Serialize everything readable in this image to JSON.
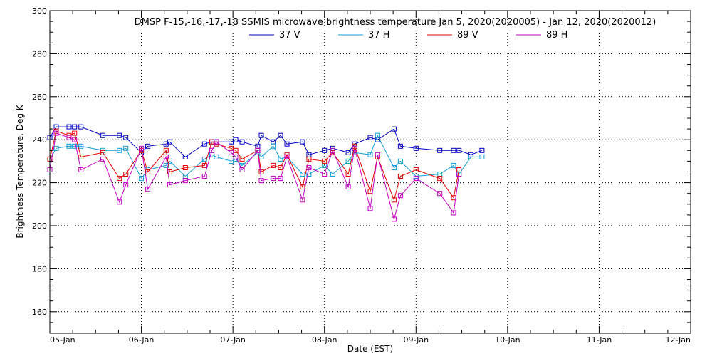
{
  "chart_data": {
    "type": "line",
    "title": "DMSP F-15,-16,-17,-18 SSMIS microwave brightness temperature Jan  5, 2020(2020005) - Jan 12, 2020(2020012)",
    "xlabel": "Date (EST)",
    "ylabel": "Brightness Temperature, Deg K",
    "xlim": [
      "05-Jan",
      "12-Jan"
    ],
    "ylim": [
      150,
      300
    ],
    "x_tick_labels": [
      "05-Jan",
      "06-Jan",
      "07-Jan",
      "08-Jan",
      "09-Jan",
      "10-Jan",
      "11-Jan",
      "12-Jan"
    ],
    "y_tick_labels": [
      160,
      180,
      200,
      220,
      240,
      260,
      280,
      300
    ],
    "grid": true,
    "legend_position": "top-center",
    "x": [
      0.0,
      0.07,
      0.21,
      0.27,
      0.34,
      0.58,
      0.76,
      0.83,
      1.0,
      1.07,
      1.27,
      1.31,
      1.48,
      1.69,
      1.77,
      1.82,
      1.98,
      2.03,
      2.1,
      2.27,
      2.31,
      2.44,
      2.52,
      2.59,
      2.76,
      2.83,
      3.0,
      3.09,
      3.26,
      3.33,
      3.5,
      3.58,
      3.76,
      3.83,
      4.0,
      4.26,
      4.41,
      4.47,
      4.6,
      4.72,
      4.95,
      4.99
    ],
    "series": [
      {
        "name": "37 V",
        "color": "#0000c0",
        "values": [
          241,
          246,
          246,
          246,
          246,
          242,
          242,
          241,
          234,
          237,
          238,
          239,
          232,
          238,
          239,
          239,
          239,
          240,
          239,
          237,
          242,
          239,
          242,
          238,
          239,
          233,
          235,
          236,
          234,
          238,
          241,
          240,
          245,
          237,
          236,
          235,
          235,
          235,
          233,
          235,
          null,
          null
        ]
      },
      {
        "name": "37 H",
        "color": "#109cd6",
        "values": [
          231,
          236,
          237,
          237,
          237,
          235,
          235,
          236,
          222,
          226,
          228,
          230,
          223,
          231,
          233,
          232,
          230,
          231,
          228,
          234,
          232,
          237,
          231,
          232,
          224,
          224,
          228,
          224,
          230,
          234,
          233,
          242,
          227,
          230,
          223,
          224,
          228,
          224,
          232,
          232,
          null,
          null
        ]
      },
      {
        "name": "89 V",
        "color": "#e00000",
        "values": [
          231,
          244,
          242,
          243,
          232,
          234,
          222,
          224,
          235,
          225,
          235,
          225,
          227,
          228,
          239,
          238,
          236,
          235,
          231,
          235,
          225,
          228,
          227,
          233,
          218,
          231,
          230,
          234,
          224,
          237,
          216,
          232,
          212,
          223,
          226,
          222,
          213,
          226,
          null,
          null,
          null,
          null
        ]
      },
      {
        "name": "89 H",
        "color": "#c000c0",
        "values": [
          226,
          243,
          241,
          240,
          226,
          231,
          211,
          219,
          236,
          217,
          232,
          219,
          221,
          223,
          235,
          239,
          234,
          232,
          226,
          235,
          221,
          222,
          222,
          232,
          212,
          227,
          224,
          235,
          218,
          236,
          208,
          233,
          203,
          214,
          222,
          215,
          206,
          224,
          null,
          null,
          null,
          null
        ]
      }
    ]
  }
}
